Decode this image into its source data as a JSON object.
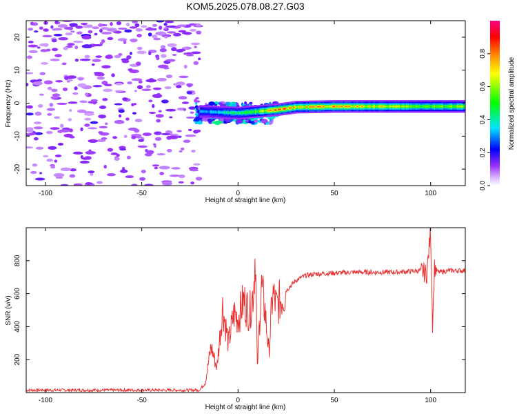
{
  "title": "KOM5.2025.078.08.27.G03",
  "colors": {
    "snr_line": "#e83030",
    "background": "#ffffff",
    "frame": "#000000"
  },
  "chart_data": [
    {
      "type": "heatmap",
      "xlabel": "Height of straight line (km)",
      "ylabel": "Frequency (Hz)",
      "xlim": [
        -110,
        118
      ],
      "ylim": [
        -25,
        25
      ],
      "xticks": [
        -100,
        -50,
        0,
        50,
        100
      ],
      "yticks": [
        -20,
        -10,
        0,
        10,
        20
      ],
      "grid": false,
      "colorbar": {
        "label": "Normalized spectral amplitude",
        "range": [
          0,
          1
        ],
        "ticks": [
          "0.0",
          "0.2",
          "0.4",
          "0.6",
          "0.8"
        ],
        "colors": [
          "#ffffff",
          "#9b30ff",
          "#0000ff",
          "#00e5ff",
          "#00ff00",
          "#ffff00",
          "#ff8000",
          "#ff0000",
          "#ff0080"
        ]
      },
      "ridge": {
        "description_points_x": [
          -20,
          0,
          10,
          20,
          30,
          50,
          100,
          118
        ],
        "frequency": [
          -2.5,
          -3,
          -2.5,
          -2,
          -1.2,
          -1,
          -1,
          -1
        ],
        "amplitude": [
          0.3,
          0.45,
          0.55,
          0.8,
          0.7,
          0.75,
          0.55,
          0.6
        ]
      }
    },
    {
      "type": "line",
      "xlabel": "Height of straight line (km)",
      "ylabel": "SNR (v/v)",
      "xlim": [
        -110,
        118
      ],
      "ylim": [
        0,
        1000
      ],
      "xticks": [
        -100,
        -50,
        0,
        50,
        100
      ],
      "yticks": [
        200,
        400,
        600,
        800
      ],
      "grid": false,
      "series": [
        {
          "x": [
            -110,
            -80,
            -50,
            -20,
            -17,
            -14,
            -11,
            -8,
            -5,
            -2,
            0,
            3,
            6,
            8,
            9,
            10,
            12,
            14,
            16,
            18,
            20,
            25,
            30,
            35,
            40,
            50,
            60,
            70,
            80,
            90,
            95,
            98,
            100,
            101,
            102,
            104,
            110,
            118
          ],
          "y": [
            15,
            15,
            15,
            15,
            60,
            280,
            150,
            520,
            300,
            480,
            450,
            560,
            480,
            620,
            880,
            140,
            650,
            500,
            240,
            600,
            520,
            620,
            680,
            710,
            720,
            725,
            730,
            730,
            730,
            735,
            740,
            720,
            980,
            420,
            760,
            730,
            740,
            740
          ]
        }
      ]
    }
  ]
}
